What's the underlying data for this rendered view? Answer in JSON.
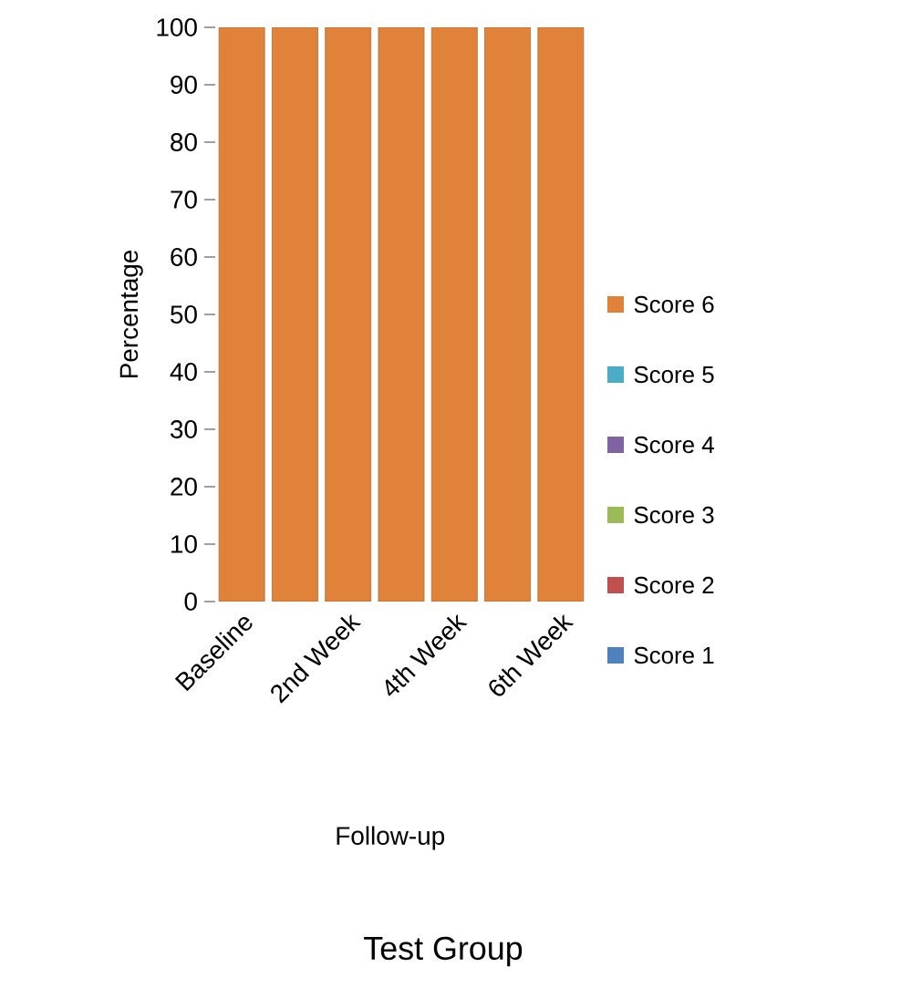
{
  "chart_data": {
    "type": "bar",
    "title": "Test Group",
    "xlabel": "Follow-up",
    "ylabel": "Percentage",
    "categories": [
      "Baseline",
      null,
      "2nd Week",
      null,
      "4th Week",
      null,
      "6th Week"
    ],
    "stacked": true,
    "series": [
      {
        "name": "Score 1",
        "color": "#4f81bd",
        "values": [
          0,
          0,
          0,
          0,
          0,
          0,
          0
        ]
      },
      {
        "name": "Score 2",
        "color": "#c0504d",
        "values": [
          0,
          0,
          0,
          0,
          0,
          0,
          0
        ]
      },
      {
        "name": "Score 3",
        "color": "#9bbb59",
        "values": [
          0,
          0,
          0,
          0,
          0,
          0,
          0
        ]
      },
      {
        "name": "Score 4",
        "color": "#8064a2",
        "values": [
          0,
          0,
          0,
          0,
          0,
          0,
          0
        ]
      },
      {
        "name": "Score 5",
        "color": "#4bacc6",
        "values": [
          0,
          0,
          0,
          0,
          0,
          0,
          0
        ]
      },
      {
        "name": "Score 6",
        "color": "#e0823a",
        "values": [
          100,
          100,
          100,
          100,
          100,
          100,
          100
        ]
      }
    ],
    "ylim": [
      0,
      100
    ],
    "yticks": [
      0,
      10,
      20,
      30,
      40,
      50,
      60,
      70,
      80,
      90,
      100
    ],
    "legend": "right"
  }
}
